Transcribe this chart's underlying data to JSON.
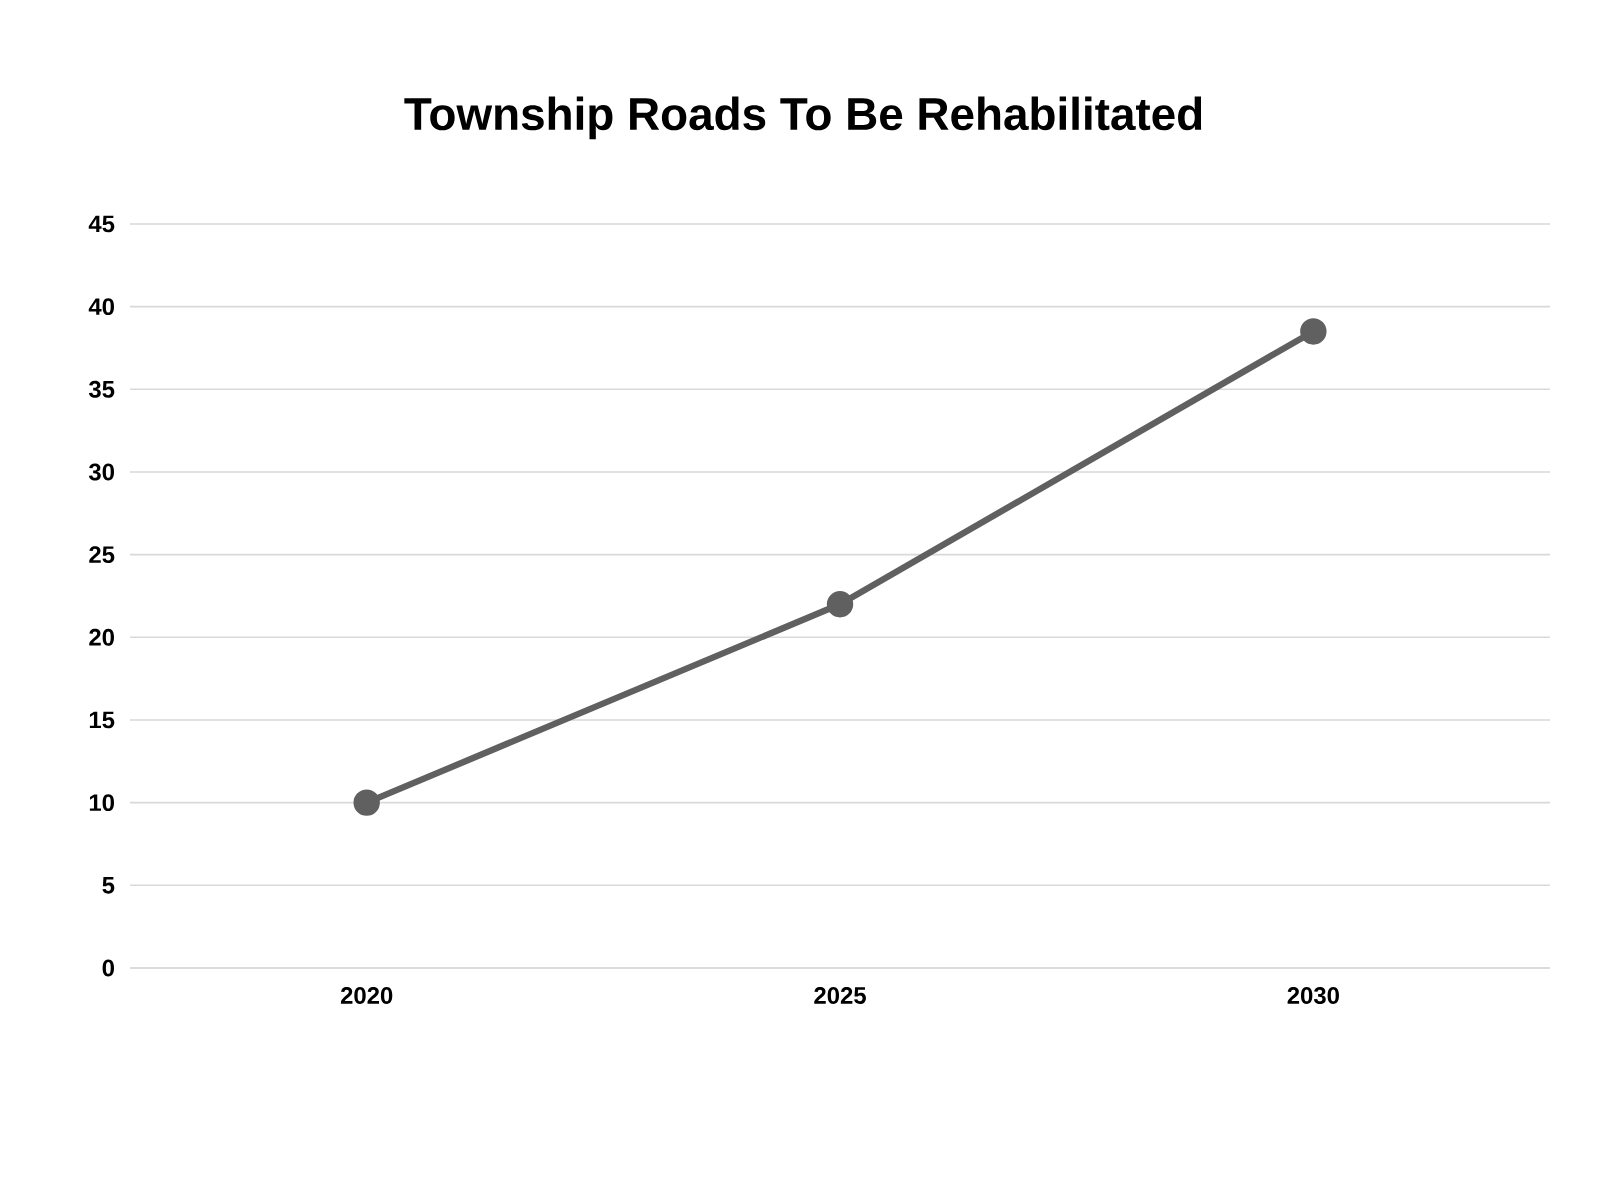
{
  "chart_data": {
    "type": "line",
    "title": "Township Roads To Be Rehabilitated",
    "categories": [
      "2020",
      "2025",
      "2030"
    ],
    "series": [
      {
        "color": "#606060",
        "values": [
          10,
          22,
          38.5
        ]
      }
    ],
    "ylim": [
      0,
      45
    ],
    "yticks": [
      0,
      5,
      10,
      15,
      20,
      25,
      30,
      35,
      40,
      45
    ],
    "grid": "y",
    "marker": "circle",
    "line_style": "solid"
  }
}
